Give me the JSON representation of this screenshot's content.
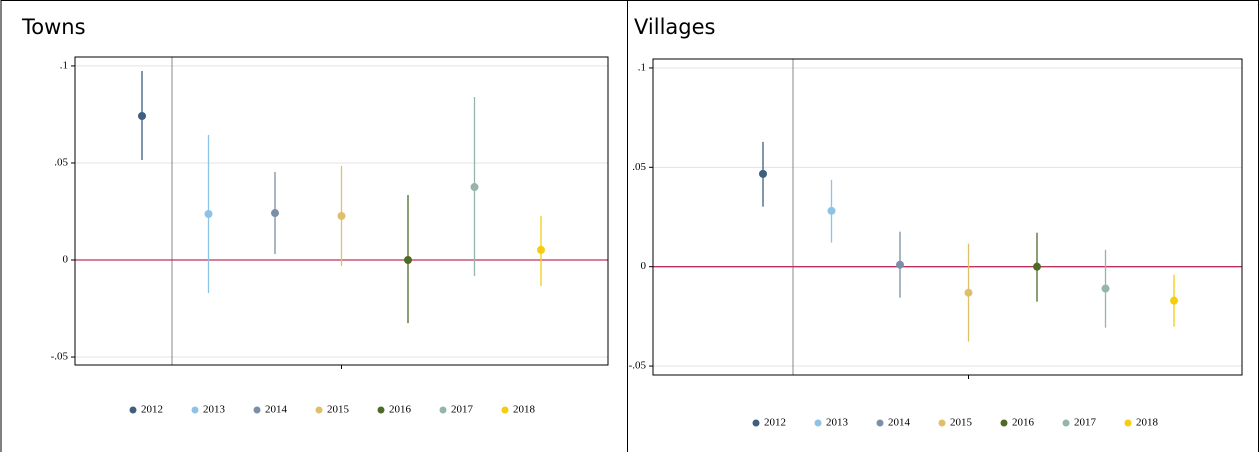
{
  "chart_data": [
    {
      "type": "errorbar",
      "title": "Towns",
      "ylim": [
        -0.0541,
        0.1046
      ],
      "yticks": [
        {
          "value": -0.05,
          "label": "-.05"
        },
        0,
        {
          "value": 0.05,
          "label": ".05"
        },
        {
          "value": 0.1,
          "label": ".1"
        }
      ],
      "grid": true,
      "series": [
        {
          "name": "2012",
          "color": "#3e5f80",
          "values": [
            0.0742
          ],
          "ci_low": [
            0.0515
          ],
          "ci_high": [
            0.0974
          ]
        },
        {
          "name": "2013",
          "color": "#8fc3e6",
          "values": [
            0.0237
          ],
          "ci_low": [
            -0.017
          ],
          "ci_high": [
            0.0644
          ]
        },
        {
          "name": "2014",
          "color": "#7b8fa8",
          "values": [
            0.0242
          ],
          "ci_low": [
            0.0031
          ],
          "ci_high": [
            0.0454
          ]
        },
        {
          "name": "2015",
          "color": "#e0bf6a",
          "values": [
            0.0227
          ],
          "ci_low": [
            -0.0031
          ],
          "ci_high": [
            0.0485
          ]
        },
        {
          "name": "2016",
          "color": "#4e6b25",
          "values": [
            0
          ],
          "ci_low": [
            -0.0325
          ],
          "ci_high": [
            0.0335
          ]
        },
        {
          "name": "2017",
          "color": "#94b5a7",
          "values": [
            0.0376
          ],
          "ci_low": [
            -0.0082
          ],
          "ci_high": [
            0.084
          ]
        },
        {
          "name": "2018",
          "color": "#f5cd0d",
          "values": [
            0.0052
          ],
          "ci_low": [
            -0.0134
          ],
          "ci_high": [
            0.0227
          ]
        }
      ]
    },
    {
      "type": "errorbar",
      "title": "Villages",
      "ylim": [
        -0.0545,
        0.1045
      ],
      "yticks": [
        {
          "value": -0.05,
          "label": "-.05"
        },
        0,
        {
          "value": 0.05,
          "label": ".05"
        },
        {
          "value": 0.1,
          "label": ".1"
        }
      ],
      "grid": true,
      "series": [
        {
          "name": "2012",
          "color": "#3e5f80",
          "values": [
            0.0467
          ],
          "ci_low": [
            0.0302
          ],
          "ci_high": [
            0.0628
          ]
        },
        {
          "name": "2013",
          "color": "#8fc3e6",
          "values": [
            0.0281
          ],
          "ci_low": [
            0.0121
          ],
          "ci_high": [
            0.0437
          ]
        },
        {
          "name": "2014",
          "color": "#7b8fa8",
          "values": [
            0.001
          ],
          "ci_low": [
            -0.0156
          ],
          "ci_high": [
            0.0176
          ]
        },
        {
          "name": "2015",
          "color": "#e0bf6a",
          "values": [
            -0.0131
          ],
          "ci_low": [
            -0.0377
          ],
          "ci_high": [
            0.0116
          ]
        },
        {
          "name": "2016",
          "color": "#4e6b25",
          "values": [
            0
          ],
          "ci_low": [
            -0.0176
          ],
          "ci_high": [
            0.0171
          ]
        },
        {
          "name": "2017",
          "color": "#94b5a7",
          "values": [
            -0.011
          ],
          "ci_low": [
            -0.0307
          ],
          "ci_high": [
            0.0085
          ]
        },
        {
          "name": "2018",
          "color": "#f5cd0d",
          "values": [
            -0.0171
          ],
          "ci_low": [
            -0.0302
          ],
          "ci_high": [
            -0.004
          ]
        }
      ]
    }
  ]
}
